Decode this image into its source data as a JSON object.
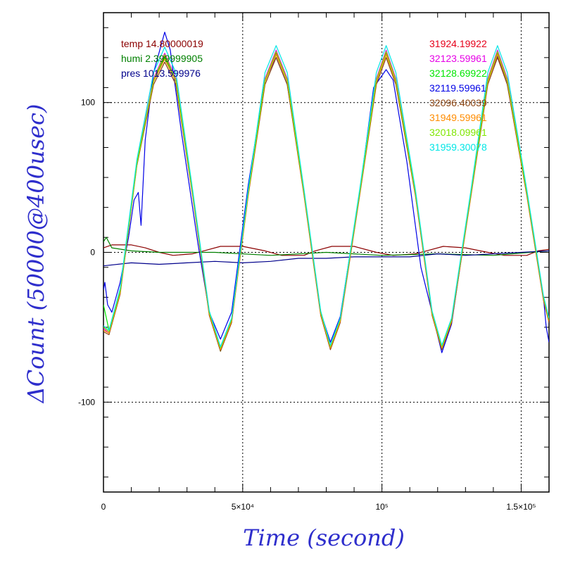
{
  "chart_data": {
    "type": "line",
    "xlabel": "Time (second)",
    "ylabel": "ΔCount (50000@400usec)",
    "xlim": [
      0,
      160000
    ],
    "ylim": [
      -160,
      160
    ],
    "grid": "dotted lines at x = 50000, 100000, 150000 and y = -100, 0, 100",
    "x_ticks": [
      {
        "value": 0,
        "label": "0"
      },
      {
        "value": 50000,
        "label": "5×10⁴"
      },
      {
        "value": 100000,
        "label": "10⁵"
      },
      {
        "value": 150000,
        "label": "1.5×10⁵"
      }
    ],
    "y_ticks": [
      {
        "value": 100,
        "label": "100"
      },
      {
        "value": 0,
        "label": "0"
      },
      {
        "value": -100,
        "label": "-100"
      }
    ],
    "env_legend": [
      {
        "text": "temp 14.80000019",
        "color": "#8b0000"
      },
      {
        "text": "humi 2.399999905",
        "color": "#008000"
      },
      {
        "text": "pres 1013.599976",
        "color": "#00008b"
      }
    ],
    "series": [
      {
        "name": "31924.19922",
        "color": "#e6001a",
        "x": [
          0,
          2000,
          6000,
          12000,
          18000,
          22000,
          26000,
          32000,
          38000,
          42000,
          46000,
          52000,
          58000,
          62000,
          66000,
          72000,
          78000,
          81500,
          85000,
          92000,
          98000,
          101500,
          105000,
          112000,
          118000,
          121500,
          125000,
          132000,
          138000,
          141500,
          145000,
          152000,
          158000,
          160000
        ],
        "y": [
          -50,
          -53,
          -25,
          60,
          115,
          131,
          115,
          40,
          -40,
          -64,
          -45,
          40,
          115,
          133,
          115,
          40,
          -40,
          -63,
          -45,
          40,
          115,
          133,
          115,
          40,
          -40,
          -63,
          -45,
          40,
          115,
          133,
          115,
          40,
          -30,
          -45
        ]
      },
      {
        "name": "32123.59961",
        "color": "#e600e6",
        "x": [
          0,
          2000,
          6000,
          12000,
          18000,
          22000,
          26000,
          32000,
          38000,
          42000,
          46000,
          52000,
          58000,
          62000,
          66000,
          72000,
          78000,
          81500,
          85000,
          92000,
          98000,
          101500,
          105000,
          112000,
          118000,
          121500,
          125000,
          132000,
          138000,
          141500,
          145000,
          152000,
          158000,
          160000
        ],
        "y": [
          -51,
          -54,
          -26,
          60,
          116,
          133,
          116,
          40,
          -40,
          -65,
          -46,
          40,
          116,
          135,
          116,
          40,
          -40,
          -64,
          -46,
          40,
          116,
          135,
          116,
          40,
          -40,
          -64,
          -46,
          40,
          116,
          135,
          116,
          40,
          -31,
          -46
        ]
      },
      {
        "name": "32128.69922",
        "color": "#00e600",
        "x": [
          0,
          2000,
          6000,
          12000,
          18000,
          22000,
          26000,
          32000,
          38000,
          42000,
          46000,
          52000,
          58000,
          62000,
          66000,
          72000,
          78000,
          81500,
          85000,
          92000,
          98000,
          101500,
          105000,
          112000,
          118000,
          121500,
          125000,
          132000,
          138000,
          141500,
          145000,
          152000,
          158000,
          160000
        ],
        "y": [
          -35,
          -52,
          -25,
          60,
          114,
          130,
          114,
          40,
          -40,
          -66,
          -45,
          40,
          114,
          132,
          114,
          40,
          -40,
          -63,
          -45,
          40,
          114,
          132,
          114,
          40,
          -40,
          -63,
          -45,
          40,
          114,
          132,
          114,
          40,
          -30,
          -45
        ]
      },
      {
        "name": "32119.59961",
        "color": "#0000e6",
        "x": [
          0,
          500,
          1500,
          3000,
          6000,
          9000,
          11000,
          12500,
          13500,
          15000,
          18000,
          22000,
          24000,
          28000,
          34000,
          38000,
          42000,
          46000,
          52000,
          58000,
          62000,
          66000,
          72000,
          78000,
          81500,
          85000,
          92000,
          97000,
          100000,
          101500,
          104000,
          109000,
          114000,
          116000,
          118000,
          121500,
          125000,
          132000,
          138000,
          141500,
          145000,
          152000,
          158000,
          159000,
          160000
        ],
        "y": [
          -25,
          -20,
          -35,
          -40,
          -20,
          10,
          35,
          40,
          18,
          75,
          120,
          147,
          135,
          80,
          5,
          -40,
          -58,
          -40,
          45,
          115,
          130,
          112,
          40,
          -40,
          -60,
          -43,
          40,
          110,
          118,
          122,
          115,
          60,
          -10,
          -25,
          -40,
          -67,
          -48,
          40,
          115,
          131,
          112,
          40,
          -30,
          -50,
          -60
        ]
      },
      {
        "name": "32096.40039",
        "color": "#8b4513",
        "x": [
          0,
          2000,
          6000,
          12000,
          18000,
          22000,
          26000,
          32000,
          38000,
          42000,
          46000,
          52000,
          58000,
          62000,
          66000,
          72000,
          78000,
          81500,
          85000,
          92000,
          98000,
          101500,
          105000,
          112000,
          118000,
          121500,
          125000,
          132000,
          138000,
          141500,
          145000,
          152000,
          158000,
          160000
        ],
        "y": [
          -53,
          -55,
          -28,
          58,
          112,
          127,
          112,
          38,
          -42,
          -66,
          -47,
          38,
          112,
          130,
          112,
          38,
          -42,
          -65,
          -47,
          38,
          112,
          130,
          112,
          38,
          -42,
          -65,
          -47,
          38,
          112,
          130,
          112,
          38,
          -32,
          -47
        ]
      },
      {
        "name": "31949.59961",
        "color": "#ff8c00",
        "x": [
          0,
          2000,
          6000,
          12000,
          18000,
          22000,
          26000,
          32000,
          38000,
          42000,
          46000,
          52000,
          58000,
          62000,
          66000,
          72000,
          78000,
          81500,
          85000,
          92000,
          98000,
          101500,
          105000,
          112000,
          118000,
          121500,
          125000,
          132000,
          138000,
          141500,
          145000,
          152000,
          158000,
          160000
        ],
        "y": [
          -52,
          -54,
          -27,
          59,
          114,
          129,
          114,
          39,
          -41,
          -65,
          -46,
          39,
          114,
          132,
          114,
          39,
          -41,
          -64,
          -46,
          39,
          114,
          132,
          114,
          39,
          -41,
          -64,
          -46,
          39,
          114,
          132,
          114,
          39,
          -31,
          -46
        ]
      },
      {
        "name": "32018.09961",
        "color": "#7fe600",
        "x": [
          0,
          2000,
          6000,
          12000,
          18000,
          22000,
          26000,
          32000,
          38000,
          42000,
          46000,
          52000,
          58000,
          62000,
          66000,
          72000,
          78000,
          81500,
          85000,
          92000,
          98000,
          101500,
          105000,
          112000,
          118000,
          121500,
          125000,
          132000,
          138000,
          141500,
          145000,
          152000,
          158000,
          160000
        ],
        "y": [
          -50,
          -53,
          -26,
          59,
          115,
          132,
          115,
          40,
          -40,
          -64,
          -45,
          40,
          115,
          134,
          115,
          40,
          -40,
          -63,
          -45,
          40,
          115,
          134,
          115,
          40,
          -40,
          -63,
          -45,
          40,
          115,
          134,
          115,
          40,
          -30,
          -45
        ]
      },
      {
        "name": "31959.30078",
        "color": "#00e6e6",
        "x": [
          0,
          2000,
          6000,
          12000,
          18000,
          22000,
          26000,
          32000,
          38000,
          42000,
          46000,
          52000,
          58000,
          62000,
          66000,
          72000,
          78000,
          81500,
          85000,
          92000,
          98000,
          101500,
          105000,
          112000,
          118000,
          121500,
          125000,
          132000,
          138000,
          141500,
          145000,
          152000,
          158000,
          160000
        ],
        "y": [
          -49,
          -52,
          -24,
          62,
          120,
          137,
          120,
          42,
          -39,
          -63,
          -44,
          42,
          120,
          138,
          120,
          42,
          -39,
          -62,
          -44,
          42,
          120,
          138,
          120,
          42,
          -39,
          -62,
          -44,
          42,
          120,
          138,
          120,
          42,
          -29,
          -44
        ]
      }
    ],
    "env_series": [
      {
        "name": "temp",
        "color": "#8b0000",
        "x": [
          0,
          3000,
          10000,
          15000,
          20000,
          25000,
          32000,
          36000,
          42000,
          50000,
          58000,
          64000,
          72000,
          76000,
          82000,
          90000,
          98000,
          104000,
          112000,
          116000,
          122000,
          130000,
          138000,
          144000,
          152000,
          156000,
          160000
        ],
        "y": [
          3,
          5,
          5,
          3,
          0,
          -2,
          -1,
          1,
          4,
          4,
          1,
          -2,
          -2,
          1,
          4,
          4,
          0,
          -2,
          -1,
          1,
          4,
          3,
          0,
          -2,
          -2,
          1,
          2
        ]
      },
      {
        "name": "humi",
        "color": "#008000",
        "x": [
          0,
          1000,
          3000,
          10000,
          20000,
          40000,
          60000,
          80000,
          100000,
          120000,
          140000,
          160000
        ],
        "y": [
          7,
          10,
          3,
          1,
          0,
          0,
          -2,
          0,
          -2,
          -1,
          -2,
          1
        ]
      },
      {
        "name": "pres",
        "color": "#00008b",
        "x": [
          0,
          10000,
          20000,
          30000,
          40000,
          50000,
          60000,
          70000,
          80000,
          90000,
          100000,
          110000,
          120000,
          130000,
          140000,
          150000,
          160000
        ],
        "y": [
          -9,
          -7,
          -8,
          -7,
          -6,
          -7,
          -6,
          -4,
          -4,
          -3,
          -3,
          -3,
          -1,
          -2,
          -1,
          0,
          1
        ]
      }
    ]
  }
}
